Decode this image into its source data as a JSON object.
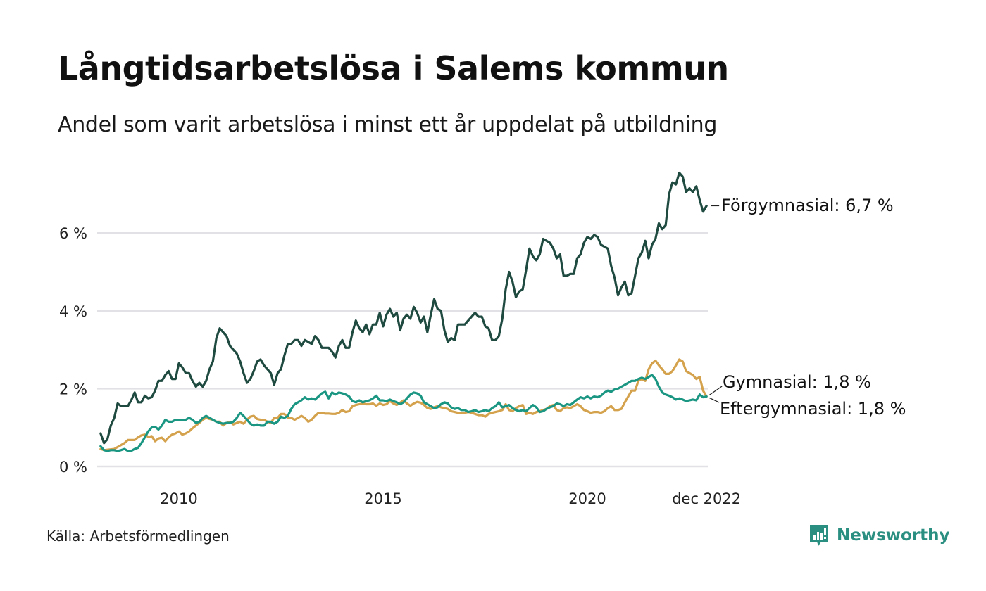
{
  "header": {
    "title": "Långtidsarbetslösa i Salems kommun",
    "subtitle": "Andel som varit arbetslösa i minst ett år uppdelat på utbildning"
  },
  "footer": {
    "source": "Källa: Arbetsförmedlingen",
    "brand": "Newsworthy",
    "brand_icon": "bar-chart-speech-bubble-icon",
    "brand_color": "#2a8f80"
  },
  "chart_data": {
    "type": "line",
    "title": "Långtidsarbetslösa i Salems kommun",
    "subtitle": "Andel som varit arbetslösa i minst ett år uppdelat på utbildning",
    "xlabel": "",
    "ylabel": "",
    "x_start": "2008-02",
    "x_end": "2022-12",
    "frequency": "monthly",
    "ylim": [
      0,
      7.6
    ],
    "grid": true,
    "y_ticks": [
      0,
      2,
      4,
      6
    ],
    "y_tick_labels": [
      "0 %",
      "2 %",
      "4 %",
      "6 %"
    ],
    "x_ticks": [
      "2010-01",
      "2015-01",
      "2020-01",
      "2022-12"
    ],
    "x_tick_labels": [
      "2010",
      "2015",
      "2020",
      "dec 2022"
    ],
    "legend": "end-of-line labels",
    "series": [
      {
        "name": "Förgymnasial",
        "label": "Förgymnasial: 6,7 %",
        "color": "#1f4a40",
        "values": [
          0.85,
          0.6,
          0.7,
          1.05,
          1.25,
          1.62,
          1.55,
          1.55,
          1.55,
          1.7,
          1.9,
          1.65,
          1.65,
          1.82,
          1.75,
          1.78,
          1.95,
          2.2,
          2.2,
          2.35,
          2.45,
          2.25,
          2.25,
          2.65,
          2.55,
          2.4,
          2.4,
          2.2,
          2.05,
          2.15,
          2.05,
          2.2,
          2.5,
          2.7,
          3.3,
          3.55,
          3.45,
          3.35,
          3.1,
          3.0,
          2.9,
          2.7,
          2.4,
          2.15,
          2.25,
          2.45,
          2.7,
          2.75,
          2.6,
          2.5,
          2.4,
          2.1,
          2.4,
          2.5,
          2.85,
          3.15,
          3.15,
          3.25,
          3.25,
          3.1,
          3.25,
          3.2,
          3.15,
          3.35,
          3.25,
          3.05,
          3.05,
          3.05,
          2.95,
          2.8,
          3.1,
          3.25,
          3.05,
          3.05,
          3.45,
          3.75,
          3.55,
          3.45,
          3.65,
          3.4,
          3.65,
          3.65,
          3.95,
          3.6,
          3.9,
          4.05,
          3.85,
          3.95,
          3.5,
          3.8,
          3.9,
          3.8,
          4.1,
          3.95,
          3.7,
          3.85,
          3.45,
          3.9,
          4.3,
          4.05,
          4.0,
          3.5,
          3.2,
          3.3,
          3.25,
          3.65,
          3.65,
          3.65,
          3.75,
          3.85,
          3.95,
          3.85,
          3.85,
          3.6,
          3.55,
          3.25,
          3.25,
          3.35,
          3.8,
          4.55,
          5.0,
          4.75,
          4.35,
          4.5,
          4.55,
          5.05,
          5.6,
          5.4,
          5.3,
          5.45,
          5.85,
          5.8,
          5.75,
          5.6,
          5.35,
          5.45,
          4.9,
          4.9,
          4.95,
          4.95,
          5.35,
          5.45,
          5.75,
          5.9,
          5.85,
          5.95,
          5.9,
          5.7,
          5.65,
          5.6,
          5.15,
          4.85,
          4.4,
          4.6,
          4.75,
          4.4,
          4.45,
          4.9,
          5.35,
          5.5,
          5.8,
          5.35,
          5.7,
          5.85,
          6.25,
          6.1,
          6.2,
          7.0,
          7.3,
          7.25,
          7.55,
          7.45,
          7.05,
          7.15,
          7.05,
          7.2,
          6.85,
          6.55,
          6.7
        ]
      },
      {
        "name": "Gymnasial",
        "label": "Gymnasial: 1,8 %",
        "color": "#d4a24c",
        "values": [
          0.45,
          0.42,
          0.43,
          0.44,
          0.45,
          0.5,
          0.55,
          0.6,
          0.68,
          0.68,
          0.68,
          0.75,
          0.8,
          0.82,
          0.76,
          0.78,
          0.65,
          0.72,
          0.74,
          0.65,
          0.75,
          0.82,
          0.85,
          0.9,
          0.82,
          0.85,
          0.9,
          0.98,
          1.05,
          1.12,
          1.2,
          1.25,
          1.22,
          1.2,
          1.15,
          1.15,
          1.05,
          1.12,
          1.15,
          1.08,
          1.12,
          1.15,
          1.1,
          1.2,
          1.28,
          1.3,
          1.22,
          1.2,
          1.2,
          1.15,
          1.12,
          1.25,
          1.25,
          1.35,
          1.35,
          1.25,
          1.25,
          1.2,
          1.25,
          1.3,
          1.25,
          1.15,
          1.2,
          1.3,
          1.38,
          1.38,
          1.36,
          1.36,
          1.35,
          1.35,
          1.38,
          1.45,
          1.4,
          1.42,
          1.55,
          1.58,
          1.6,
          1.62,
          1.6,
          1.6,
          1.62,
          1.56,
          1.62,
          1.58,
          1.6,
          1.68,
          1.62,
          1.58,
          1.64,
          1.7,
          1.62,
          1.56,
          1.62,
          1.66,
          1.64,
          1.58,
          1.5,
          1.48,
          1.52,
          1.55,
          1.52,
          1.5,
          1.48,
          1.42,
          1.4,
          1.38,
          1.38,
          1.38,
          1.4,
          1.38,
          1.35,
          1.32,
          1.32,
          1.28,
          1.35,
          1.38,
          1.4,
          1.42,
          1.45,
          1.6,
          1.45,
          1.42,
          1.5,
          1.55,
          1.58,
          1.35,
          1.38,
          1.35,
          1.4,
          1.42,
          1.45,
          1.48,
          1.55,
          1.58,
          1.45,
          1.42,
          1.5,
          1.52,
          1.5,
          1.55,
          1.6,
          1.55,
          1.45,
          1.42,
          1.38,
          1.4,
          1.4,
          1.38,
          1.42,
          1.5,
          1.55,
          1.45,
          1.45,
          1.48,
          1.65,
          1.8,
          1.95,
          1.95,
          2.2,
          2.25,
          2.2,
          2.5,
          2.65,
          2.72,
          2.6,
          2.5,
          2.38,
          2.38,
          2.45,
          2.6,
          2.75,
          2.7,
          2.45,
          2.4,
          2.35,
          2.25,
          2.3,
          1.95,
          1.8
        ]
      },
      {
        "name": "Eftergymnasial",
        "label": "Eftergymnasial: 1,8 %",
        "color": "#1a9683",
        "values": [
          0.52,
          0.42,
          0.4,
          0.42,
          0.42,
          0.4,
          0.42,
          0.45,
          0.4,
          0.4,
          0.45,
          0.48,
          0.6,
          0.75,
          0.9,
          1.0,
          1.02,
          0.95,
          1.05,
          1.2,
          1.15,
          1.15,
          1.2,
          1.2,
          1.2,
          1.2,
          1.25,
          1.2,
          1.12,
          1.15,
          1.25,
          1.3,
          1.25,
          1.2,
          1.15,
          1.12,
          1.1,
          1.12,
          1.12,
          1.15,
          1.25,
          1.38,
          1.3,
          1.2,
          1.1,
          1.05,
          1.08,
          1.05,
          1.05,
          1.15,
          1.15,
          1.1,
          1.15,
          1.28,
          1.25,
          1.3,
          1.48,
          1.6,
          1.65,
          1.7,
          1.78,
          1.72,
          1.75,
          1.72,
          1.8,
          1.88,
          1.92,
          1.75,
          1.9,
          1.85,
          1.9,
          1.88,
          1.85,
          1.8,
          1.68,
          1.65,
          1.7,
          1.65,
          1.68,
          1.7,
          1.75,
          1.82,
          1.7,
          1.7,
          1.68,
          1.72,
          1.68,
          1.65,
          1.6,
          1.65,
          1.75,
          1.85,
          1.9,
          1.88,
          1.82,
          1.65,
          1.6,
          1.55,
          1.5,
          1.52,
          1.6,
          1.65,
          1.62,
          1.52,
          1.48,
          1.5,
          1.45,
          1.45,
          1.4,
          1.42,
          1.45,
          1.4,
          1.42,
          1.45,
          1.42,
          1.5,
          1.55,
          1.65,
          1.52,
          1.55,
          1.58,
          1.5,
          1.45,
          1.42,
          1.45,
          1.42,
          1.5,
          1.58,
          1.52,
          1.4,
          1.42,
          1.48,
          1.52,
          1.55,
          1.62,
          1.6,
          1.55,
          1.6,
          1.58,
          1.65,
          1.72,
          1.78,
          1.75,
          1.8,
          1.75,
          1.8,
          1.78,
          1.82,
          1.9,
          1.95,
          1.92,
          1.98,
          2.0,
          2.05,
          2.1,
          2.15,
          2.2,
          2.2,
          2.25,
          2.28,
          2.25,
          2.3,
          2.35,
          2.25,
          2.05,
          1.9,
          1.85,
          1.82,
          1.78,
          1.72,
          1.75,
          1.72,
          1.68,
          1.7,
          1.72,
          1.7,
          1.85,
          1.78,
          1.8
        ]
      }
    ]
  }
}
